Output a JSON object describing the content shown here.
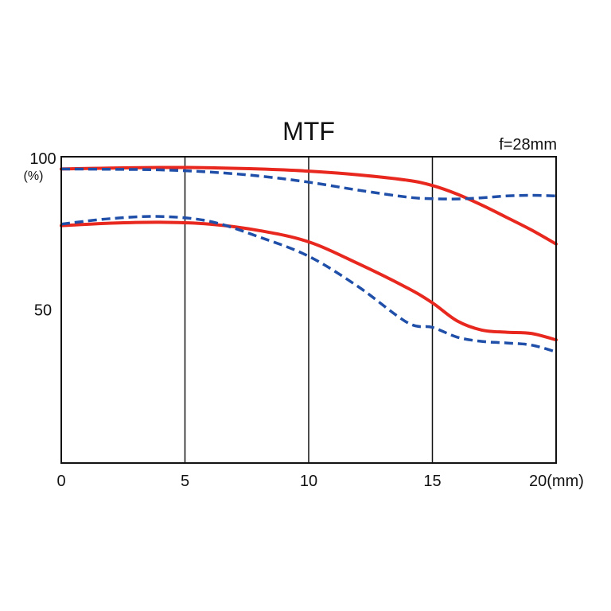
{
  "chart_data": {
    "type": "line",
    "title": "MTF",
    "subtitle": "f=28mm",
    "xlabel": "",
    "ylabel": "",
    "y_unit_label": "(%)",
    "xlim": [
      0,
      20
    ],
    "ylim": [
      0,
      100
    ],
    "x_ticks": [
      {
        "value": 0,
        "label": "0"
      },
      {
        "value": 5,
        "label": "5"
      },
      {
        "value": 10,
        "label": "10"
      },
      {
        "value": 15,
        "label": "15"
      },
      {
        "value": 20,
        "label": "20(mm)"
      }
    ],
    "y_ticks": [
      {
        "value": 100,
        "label": "100"
      },
      {
        "value": 50,
        "label": "50"
      }
    ],
    "vertical_gridlines": [
      5,
      10,
      15
    ],
    "series": [
      {
        "color": "#e8281e",
        "style": "solid",
        "x": [
          0,
          2,
          4,
          6,
          8,
          10,
          12,
          14,
          15,
          16,
          17,
          18,
          19,
          20
        ],
        "y": [
          96,
          96.3,
          96.5,
          96.4,
          96,
          95.3,
          94.1,
          92.3,
          90.6,
          87.8,
          84.2,
          80.2,
          76.1,
          71.5
        ]
      },
      {
        "color": "#1f4fa8",
        "style": "dashed",
        "x": [
          0,
          2,
          4,
          6,
          8,
          10,
          12,
          14,
          15,
          16,
          17,
          18,
          19,
          20
        ],
        "y": [
          96,
          95.9,
          95.7,
          95,
          93.7,
          91.7,
          89.1,
          86.8,
          86.3,
          86.2,
          86.6,
          87.2,
          87.4,
          87.2
        ]
      },
      {
        "color": "#e8281e",
        "style": "solid",
        "x": [
          0,
          2,
          4,
          6,
          8,
          10,
          12,
          14,
          15,
          16,
          17,
          18,
          19,
          20
        ],
        "y": [
          77.5,
          78.3,
          78.6,
          78,
          75.9,
          72.2,
          65.1,
          57.1,
          52.3,
          46.4,
          43.4,
          42.7,
          42.3,
          40.2
        ]
      },
      {
        "color": "#1f4fa8",
        "style": "dashed",
        "x": [
          0,
          2,
          4,
          6,
          8,
          10,
          12,
          14,
          15,
          16,
          17,
          18,
          19,
          20
        ],
        "y": [
          78,
          79.8,
          80.5,
          78.9,
          73.8,
          67.5,
          57.6,
          45.8,
          44.3,
          41.1,
          39.7,
          39.2,
          38.5,
          36.3
        ]
      }
    ]
  }
}
